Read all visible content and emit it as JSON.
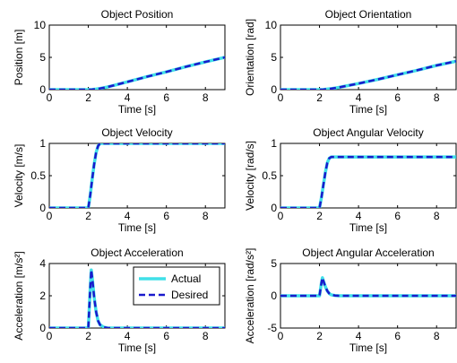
{
  "chart_data": [
    {
      "type": "line",
      "title": "Object Position",
      "xlabel": "Time [s]",
      "ylabel": "Position [m]",
      "xlim": [
        0,
        9
      ],
      "ylim": [
        0,
        10
      ],
      "x_ticks": [
        "0",
        "2",
        "4",
        "6",
        "8"
      ],
      "y_ticks": [
        "0",
        "5",
        "10"
      ],
      "series": [
        {
          "name": "Actual",
          "x": [
            0,
            2,
            2.2,
            2.4,
            2.6,
            3,
            4,
            5,
            6,
            7,
            8,
            9
          ],
          "y": [
            0,
            0,
            0.02,
            0.09,
            0.18,
            0.42,
            1.2,
            2.0,
            2.75,
            3.55,
            4.3,
            5.0
          ]
        },
        {
          "name": "Desired",
          "x": [
            0,
            2,
            2.2,
            2.4,
            2.6,
            3,
            4,
            5,
            6,
            7,
            8,
            9
          ],
          "y": [
            0,
            0,
            0.02,
            0.09,
            0.18,
            0.42,
            1.2,
            2.0,
            2.75,
            3.55,
            4.3,
            5.0
          ]
        }
      ],
      "colors": [
        "#40e0e8",
        "#1a1acc"
      ]
    },
    {
      "type": "line",
      "title": "Object Orientation",
      "xlabel": "Time [s]",
      "ylabel": "Orientation [rad]",
      "xlim": [
        0,
        9
      ],
      "ylim": [
        0,
        10
      ],
      "x_ticks": [
        "0",
        "2",
        "4",
        "6",
        "8"
      ],
      "y_ticks": [
        "0",
        "5",
        "10"
      ],
      "series": [
        {
          "name": "Actual",
          "x": [
            0,
            2,
            2.2,
            2.4,
            2.6,
            3,
            4,
            5,
            6,
            7,
            8,
            9
          ],
          "y": [
            0,
            0,
            0.02,
            0.08,
            0.15,
            0.35,
            0.95,
            1.6,
            2.3,
            3.0,
            3.75,
            4.4
          ]
        },
        {
          "name": "Desired",
          "x": [
            0,
            2,
            2.2,
            2.4,
            2.6,
            3,
            4,
            5,
            6,
            7,
            8,
            9
          ],
          "y": [
            0,
            0,
            0.02,
            0.08,
            0.15,
            0.35,
            0.95,
            1.6,
            2.3,
            3.0,
            3.75,
            4.4
          ]
        }
      ],
      "colors": [
        "#40e0e8",
        "#1a1acc"
      ]
    },
    {
      "type": "line",
      "title": "Object Velocity",
      "xlabel": "Time [s]",
      "ylabel": "Velocity [m/s]",
      "xlim": [
        0,
        9
      ],
      "ylim": [
        0,
        1
      ],
      "x_ticks": [
        "0",
        "2",
        "4",
        "6",
        "8"
      ],
      "y_ticks": [
        "0",
        "0.5",
        "1"
      ],
      "series": [
        {
          "name": "Actual",
          "x": [
            0,
            2,
            2.1,
            2.2,
            2.3,
            2.4,
            2.5,
            2.6,
            9
          ],
          "y": [
            0,
            0,
            0.2,
            0.45,
            0.68,
            0.86,
            0.96,
            1.0,
            1.0
          ]
        },
        {
          "name": "Desired",
          "x": [
            0,
            2,
            2.1,
            2.2,
            2.3,
            2.4,
            2.5,
            2.6,
            9
          ],
          "y": [
            0,
            0,
            0.2,
            0.45,
            0.68,
            0.86,
            0.96,
            1.0,
            1.0
          ]
        }
      ],
      "colors": [
        "#40e0e8",
        "#1a1acc"
      ]
    },
    {
      "type": "line",
      "title": "Object Angular Velocity",
      "xlabel": "Time [s]",
      "ylabel": "Velocity [rad/s]",
      "xlim": [
        0,
        9
      ],
      "ylim": [
        0,
        1
      ],
      "x_ticks": [
        "0",
        "2",
        "4",
        "6",
        "8"
      ],
      "y_ticks": [
        "0",
        "0.5",
        "1"
      ],
      "series": [
        {
          "name": "Actual",
          "x": [
            0,
            2,
            2.1,
            2.2,
            2.3,
            2.4,
            2.5,
            2.6,
            9
          ],
          "y": [
            0,
            0,
            0.16,
            0.36,
            0.55,
            0.7,
            0.77,
            0.79,
            0.79
          ]
        },
        {
          "name": "Desired",
          "x": [
            0,
            2,
            2.1,
            2.2,
            2.3,
            2.4,
            2.5,
            2.6,
            9
          ],
          "y": [
            0,
            0,
            0.16,
            0.36,
            0.55,
            0.7,
            0.77,
            0.79,
            0.79
          ]
        }
      ],
      "colors": [
        "#40e0e8",
        "#1a1acc"
      ]
    },
    {
      "type": "line",
      "title": "Object Acceleration",
      "xlabel": "Time [s]",
      "ylabel": "Acceleration [m/s²]",
      "xlim": [
        0,
        9
      ],
      "ylim": [
        0,
        4
      ],
      "x_ticks": [
        "0",
        "2",
        "4",
        "6",
        "8"
      ],
      "y_ticks": [
        "0",
        "2",
        "4"
      ],
      "series": [
        {
          "name": "Actual",
          "x": [
            0,
            2,
            2.1,
            2.15,
            2.2,
            2.3,
            2.4,
            2.5,
            2.6,
            2.8,
            3.0,
            9
          ],
          "y": [
            0,
            0,
            2.5,
            3.6,
            3.1,
            1.9,
            1.0,
            0.45,
            0.2,
            0.05,
            0,
            0
          ]
        },
        {
          "name": "Desired",
          "x": [
            0,
            2,
            2.1,
            2.15,
            2.2,
            2.3,
            2.4,
            2.5,
            2.6,
            2.8,
            3.0,
            9
          ],
          "y": [
            0,
            0,
            2.5,
            3.6,
            3.1,
            1.9,
            1.0,
            0.45,
            0.2,
            0.05,
            0,
            0
          ]
        }
      ],
      "colors": [
        "#40e0e8",
        "#1a1acc"
      ],
      "legend": {
        "position": "top-right",
        "entries": [
          "Actual",
          "Desired"
        ]
      }
    },
    {
      "type": "line",
      "title": "Object Angular Acceleration",
      "xlabel": "Time [s]",
      "ylabel": "Acceleration [rad/s²]",
      "xlim": [
        0,
        9
      ],
      "ylim": [
        -5,
        5
      ],
      "x_ticks": [
        "0",
        "2",
        "4",
        "6",
        "8"
      ],
      "y_ticks": [
        "-5",
        "0",
        "5"
      ],
      "series": [
        {
          "name": "Actual",
          "x": [
            0,
            2,
            2.1,
            2.15,
            2.2,
            2.3,
            2.4,
            2.5,
            2.6,
            2.8,
            3.0,
            9
          ],
          "y": [
            0,
            0,
            2.0,
            2.8,
            2.3,
            1.4,
            0.75,
            0.35,
            0.15,
            0.04,
            0,
            0
          ]
        },
        {
          "name": "Desired",
          "x": [
            0,
            2,
            2.1,
            2.15,
            2.2,
            2.3,
            2.4,
            2.5,
            2.6,
            2.8,
            3.0,
            9
          ],
          "y": [
            0,
            0,
            2.0,
            2.8,
            2.3,
            1.4,
            0.75,
            0.35,
            0.15,
            0.04,
            0,
            0
          ]
        }
      ],
      "colors": [
        "#40e0e8",
        "#1a1acc"
      ]
    }
  ]
}
